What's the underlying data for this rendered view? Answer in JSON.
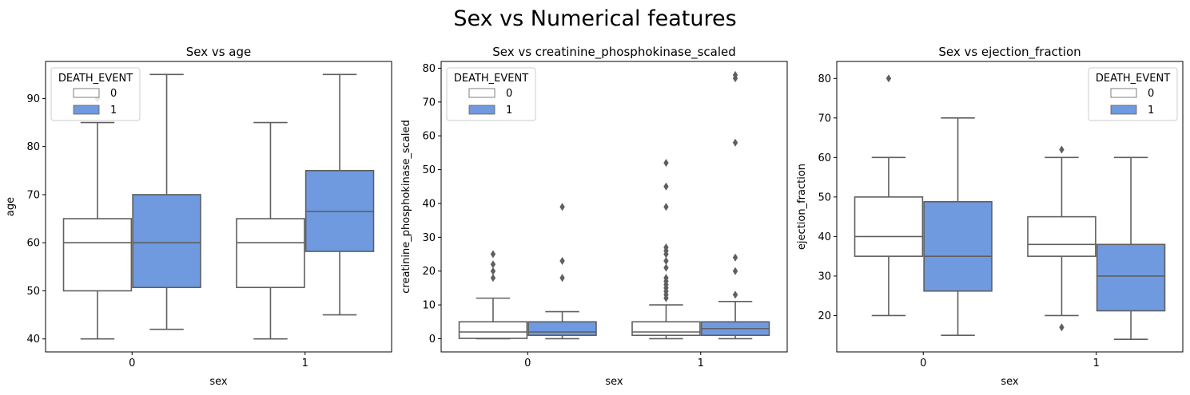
{
  "figure": {
    "title": "Sex vs Numerical features"
  },
  "colors": {
    "death0": "#ffffff",
    "death1": "#6f9ae0",
    "line": "#5f5f5f",
    "outlier": "#5f5f5f"
  },
  "chart_data": [
    {
      "type": "box",
      "title": "Sex vs age",
      "xlabel": "sex",
      "ylabel": "age",
      "categories": [
        "0",
        "1"
      ],
      "ylim": [
        37.3,
        97.7
      ],
      "yticks": [
        40,
        50,
        60,
        70,
        80,
        90
      ],
      "legend": {
        "title": "DEATH_EVENT",
        "entries": [
          "0",
          "1"
        ],
        "placement": "upper-left"
      },
      "series": [
        {
          "name": "0",
          "color": "#ffffff",
          "boxes": [
            {
              "category": "0",
              "whislo": 40,
              "q1": 50,
              "med": 60,
              "q3": 65,
              "whishi": 85,
              "fliers": [
                90
              ]
            },
            {
              "category": "1",
              "whislo": 40,
              "q1": 50.7,
              "med": 60,
              "q3": 65,
              "whishi": 85,
              "fliers": []
            }
          ]
        },
        {
          "name": "1",
          "color": "#6f9ae0",
          "boxes": [
            {
              "category": "0",
              "whislo": 42,
              "q1": 50.7,
              "med": 60,
              "q3": 70,
              "whishi": 95,
              "fliers": []
            },
            {
              "category": "1",
              "whislo": 45,
              "q1": 58.2,
              "med": 66.5,
              "q3": 75,
              "whishi": 95,
              "fliers": []
            }
          ]
        }
      ]
    },
    {
      "type": "box",
      "title": "Sex vs creatinine_phosphokinase_scaled",
      "xlabel": "sex",
      "ylabel": "creatinine_phosphokinase_scaled",
      "categories": [
        "0",
        "1"
      ],
      "ylim": [
        -3.9,
        82
      ],
      "yticks": [
        0,
        10,
        20,
        30,
        40,
        50,
        60,
        70,
        80
      ],
      "legend": {
        "title": "DEATH_EVENT",
        "entries": [
          "0",
          "1"
        ],
        "placement": "upper-left"
      },
      "series": [
        {
          "name": "0",
          "color": "#ffffff",
          "boxes": [
            {
              "category": "0",
              "whislo": 0,
              "q1": 0.1,
              "med": 2,
              "q3": 5,
              "whishi": 12,
              "fliers": [
                18,
                20,
                22,
                25
              ]
            },
            {
              "category": "1",
              "whislo": 0,
              "q1": 1,
              "med": 2,
              "q3": 5,
              "whishi": 10,
              "fliers": [
                12,
                13,
                14,
                15,
                16,
                17,
                18,
                21,
                23,
                25,
                26,
                27,
                39,
                45,
                52
              ]
            }
          ]
        },
        {
          "name": "1",
          "color": "#6f9ae0",
          "boxes": [
            {
              "category": "0",
              "whislo": 0,
              "q1": 1,
              "med": 2,
              "q3": 5,
              "whishi": 8,
              "fliers": [
                18,
                23,
                39
              ]
            },
            {
              "category": "1",
              "whislo": 0,
              "q1": 1,
              "med": 3,
              "q3": 5,
              "whishi": 11,
              "fliers": [
                13,
                20,
                24,
                58,
                77,
                78
              ]
            }
          ]
        }
      ]
    },
    {
      "type": "box",
      "title": "Sex vs ejection_fraction",
      "xlabel": "sex",
      "ylabel": "ejection_fraction",
      "categories": [
        "0",
        "1"
      ],
      "ylim": [
        10.8,
        84.3
      ],
      "yticks": [
        20,
        30,
        40,
        50,
        60,
        70,
        80
      ],
      "legend": {
        "title": "DEATH_EVENT",
        "entries": [
          "0",
          "1"
        ],
        "placement": "upper-right"
      },
      "series": [
        {
          "name": "0",
          "color": "#ffffff",
          "boxes": [
            {
              "category": "0",
              "whislo": 20,
              "q1": 35,
              "med": 40,
              "q3": 50,
              "whishi": 60,
              "fliers": [
                80
              ]
            },
            {
              "category": "1",
              "whislo": 20,
              "q1": 35,
              "med": 38,
              "q3": 45,
              "whishi": 60,
              "fliers": [
                17,
                62
              ]
            }
          ]
        },
        {
          "name": "1",
          "color": "#6f9ae0",
          "boxes": [
            {
              "category": "0",
              "whislo": 15,
              "q1": 26.2,
              "med": 35,
              "q3": 48.8,
              "whishi": 70,
              "fliers": []
            },
            {
              "category": "1",
              "whislo": 14,
              "q1": 21.2,
              "med": 30,
              "q3": 38,
              "whishi": 60,
              "fliers": []
            }
          ]
        }
      ]
    }
  ]
}
